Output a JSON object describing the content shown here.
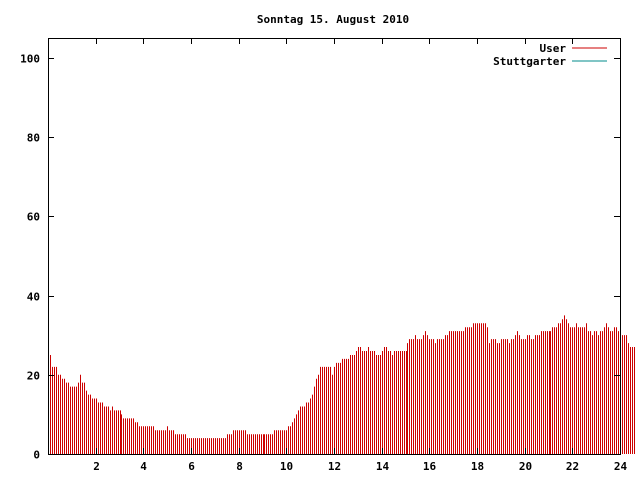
{
  "chart_data": {
    "type": "bar",
    "title": "Sonntag 15. August 2010",
    "xlabel": "",
    "ylabel": "",
    "xlim": [
      0,
      24
    ],
    "ylim": [
      0,
      105
    ],
    "xticks": [
      "2",
      "4",
      "6",
      "8",
      "10",
      "12",
      "14",
      "16",
      "18",
      "20",
      "22",
      "24"
    ],
    "yticks": [
      "0",
      "20",
      "40",
      "60",
      "80",
      "100"
    ],
    "grid": false,
    "legend_position": "top-right",
    "x_step_minutes": 5,
    "series": [
      {
        "name": "User",
        "color": "#cc0000",
        "values": [
          26,
          25,
          22,
          22,
          22,
          20,
          20,
          19,
          19,
          18,
          18,
          17,
          17,
          17,
          17,
          18,
          20,
          18,
          18,
          16,
          15,
          15,
          14,
          14,
          14,
          13,
          13,
          13,
          12,
          12,
          12,
          11,
          12,
          11,
          11,
          11,
          11,
          10,
          9,
          9,
          9,
          9,
          9,
          9,
          8,
          8,
          7,
          7,
          7,
          7,
          7,
          7,
          7,
          7,
          6,
          6,
          6,
          6,
          6,
          6,
          7,
          6,
          6,
          6,
          5,
          5,
          5,
          5,
          5,
          5,
          4,
          4,
          4,
          4,
          4,
          4,
          4,
          4,
          4,
          4,
          4,
          4,
          4,
          4,
          4,
          4,
          4,
          4,
          4,
          4,
          5,
          5,
          5,
          6,
          6,
          6,
          6,
          6,
          6,
          6,
          5,
          5,
          5,
          5,
          5,
          5,
          5,
          5,
          5,
          5,
          5,
          5,
          5,
          5,
          6,
          6,
          6,
          6,
          6,
          6,
          6,
          7,
          7,
          8,
          9,
          10,
          11,
          12,
          12,
          12,
          13,
          13,
          14,
          15,
          17,
          19,
          20,
          22,
          22,
          22,
          22,
          22,
          22,
          20,
          22,
          23,
          23,
          23,
          24,
          24,
          24,
          24,
          25,
          25,
          25,
          26,
          27,
          27,
          26,
          26,
          26,
          27,
          26,
          26,
          26,
          25,
          25,
          25,
          26,
          27,
          27,
          26,
          26,
          25,
          26,
          26,
          26,
          26,
          26,
          26,
          26,
          28,
          29,
          29,
          29,
          30,
          29,
          29,
          29,
          30,
          31,
          30,
          29,
          29,
          29,
          28,
          29,
          29,
          29,
          29,
          30,
          30,
          31,
          31,
          31,
          31,
          31,
          31,
          31,
          31,
          32,
          32,
          32,
          32,
          33,
          33,
          33,
          33,
          33,
          33,
          33,
          32,
          28,
          29,
          29,
          29,
          28,
          28,
          29,
          29,
          29,
          29,
          28,
          29,
          29,
          30,
          31,
          30,
          29,
          29,
          29,
          30,
          30,
          29,
          29,
          30,
          30,
          30,
          31,
          31,
          31,
          31,
          31,
          31,
          32,
          32,
          32,
          33,
          33,
          34,
          35,
          34,
          33,
          32,
          32,
          32,
          33,
          32,
          32,
          32,
          32,
          33,
          31,
          31,
          30,
          31,
          31,
          30,
          31,
          31,
          32,
          33,
          32,
          31,
          31,
          32,
          32,
          31,
          32,
          30,
          30,
          30,
          28,
          27,
          27,
          27
        ]
      },
      {
        "name": "Stuttgarter",
        "color": "#008b8b",
        "values": []
      }
    ]
  }
}
